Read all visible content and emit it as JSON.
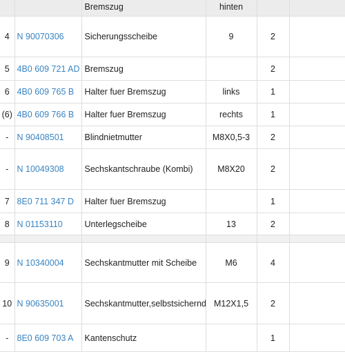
{
  "header": {
    "pos": "",
    "part": "",
    "name": "Bremszug",
    "note": "hinten",
    "qty": ""
  },
  "rows": [
    {
      "pos": "4",
      "part": "N  90070306",
      "name": "Sicherungsscheibe",
      "note": "9",
      "qty": "2"
    },
    {
      "pos": "5",
      "part": "4B0 609 721 AD",
      "name": "Bremszug",
      "note": "",
      "qty": "2"
    },
    {
      "pos": "6",
      "part": "4B0 609 765 B",
      "name": "Halter fuer Bremszug",
      "note": "links",
      "qty": "1"
    },
    {
      "pos": "(6)",
      "part": "4B0 609 766 B",
      "name": "Halter fuer Bremszug",
      "note": "rechts",
      "qty": "1"
    },
    {
      "pos": "-",
      "part": "N  90408501",
      "name": "Blindnietmutter",
      "note": "M8X0,5-3",
      "qty": "2"
    },
    {
      "pos": "-",
      "part": "N  10049308",
      "name": "Sechskantschraube (Kombi)",
      "note": "M8X20",
      "qty": "2"
    },
    {
      "pos": "7",
      "part": "8E0 711 347 D",
      "name": "Halter fuer Bremszug",
      "note": "",
      "qty": "1"
    },
    {
      "pos": "8",
      "part": "N  01153110",
      "name": "Unterlegscheibe",
      "note": "13",
      "qty": "2"
    },
    {
      "pos": "9",
      "part": "N  10340004",
      "name": "Sechskantmutter mit Scheibe",
      "note": "M6",
      "qty": "4"
    },
    {
      "pos": "10",
      "part": "N  90635001",
      "name": "Sechskantmutter,selbstsichernd",
      "note": "M12X1,5",
      "qty": "2"
    },
    {
      "pos": "-",
      "part": "8E0 609 703 A",
      "name": "Kantenschutz",
      "note": "",
      "qty": "1"
    }
  ]
}
